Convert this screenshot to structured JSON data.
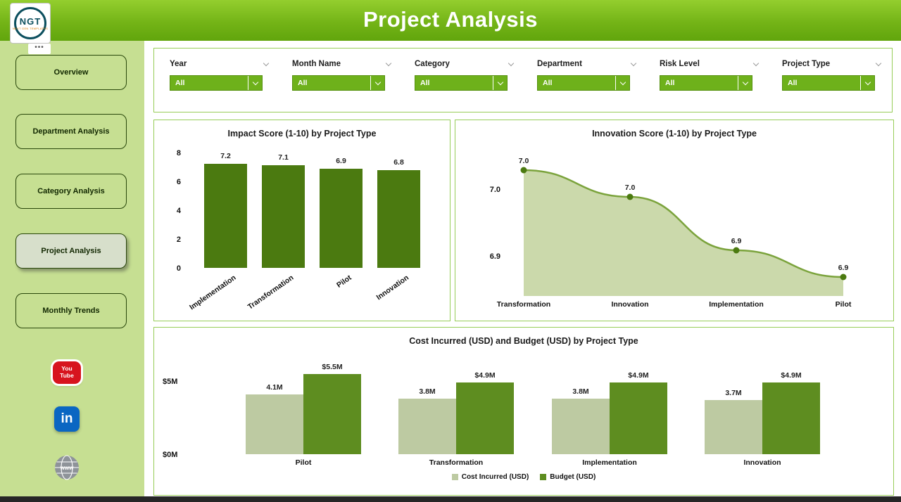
{
  "header": {
    "title": "Project Analysis"
  },
  "logo": {
    "text": "NGT",
    "subtext": "NEXT GEN TEMPLATES",
    "dots": "•••"
  },
  "sidebar": {
    "items": [
      {
        "label": "Overview",
        "active": false
      },
      {
        "label": "Department Analysis",
        "active": false
      },
      {
        "label": "Category Analysis",
        "active": false
      },
      {
        "label": "Project Analysis",
        "active": true
      },
      {
        "label": "Monthly Trends",
        "active": false
      }
    ],
    "socials": [
      {
        "name": "youtube",
        "line1": "You",
        "line2": "Tube"
      },
      {
        "name": "linkedin",
        "text": "in"
      },
      {
        "name": "website",
        "text": "www"
      }
    ]
  },
  "filters": [
    {
      "label": "Year",
      "value": "All"
    },
    {
      "label": "Month Name",
      "value": "All"
    },
    {
      "label": "Category",
      "value": "All"
    },
    {
      "label": "Department",
      "value": "All"
    },
    {
      "label": "Risk Level",
      "value": "All"
    },
    {
      "label": "Project Type",
      "value": "All"
    }
  ],
  "chart_data": [
    {
      "type": "bar",
      "title": "Impact Score (1-10) by Project Type",
      "categories": [
        "Implementation",
        "Transformation",
        "Pilot",
        "Innovation"
      ],
      "values": [
        7.2,
        7.1,
        6.9,
        6.8
      ],
      "value_labels": [
        "7.2",
        "7.1",
        "6.9",
        "6.8"
      ],
      "ylim": [
        0,
        8
      ],
      "yticks": [
        0,
        2,
        4,
        6,
        8
      ],
      "bar_color": "#4b7a10",
      "legend_position": "none",
      "grid": false
    },
    {
      "type": "area",
      "title": "Innovation Score (1-10) by Project Type",
      "categories": [
        "Transformation",
        "Innovation",
        "Implementation",
        "Pilot"
      ],
      "values": [
        7.03,
        6.99,
        6.91,
        6.87
      ],
      "value_labels": [
        "7.0",
        "7.0",
        "6.9",
        "6.9"
      ],
      "ylim": [
        6.85,
        7.05
      ],
      "yticks": [
        {
          "value": 7.0,
          "label": "7.0"
        },
        {
          "value": 6.9,
          "label": "6.9"
        }
      ],
      "line_color": "#7ba33c",
      "fill_color": "#cbd9ab",
      "marker_color": "#4b7a10",
      "legend_position": "none",
      "grid": false
    },
    {
      "type": "grouped_bar",
      "title": "Cost Incurred (USD) and Budget (USD) by Project Type",
      "categories": [
        "Pilot",
        "Transformation",
        "Implementation",
        "Innovation"
      ],
      "series": [
        {
          "name": "Cost Incurred (USD)",
          "values": [
            4.1,
            3.8,
            3.8,
            3.7
          ],
          "value_labels": [
            "4.1M",
            "3.8M",
            "3.8M",
            "3.7M"
          ],
          "color": "#bdcaa2"
        },
        {
          "name": "Budget (USD)",
          "values": [
            5.5,
            4.9,
            4.9,
            4.9
          ],
          "value_labels": [
            "$5.5M",
            "$4.9M",
            "$4.9M",
            "$4.9M"
          ],
          "color": "#5e8d20"
        }
      ],
      "ylim": [
        0,
        5
      ],
      "yticks": [
        {
          "value": 5,
          "label": "$5M"
        },
        {
          "value": 0,
          "label": "$0M"
        }
      ],
      "legend_position": "bottom",
      "grid": false
    }
  ],
  "colors": {
    "header_green": "#74b417",
    "sidebar_green": "#c6df92",
    "card_border": "#97cd58",
    "filter_green": "#6eb11b",
    "dark_bar": "#4b7a10",
    "light_bar": "#bdcaa2",
    "budget_bar": "#5e8d20"
  }
}
